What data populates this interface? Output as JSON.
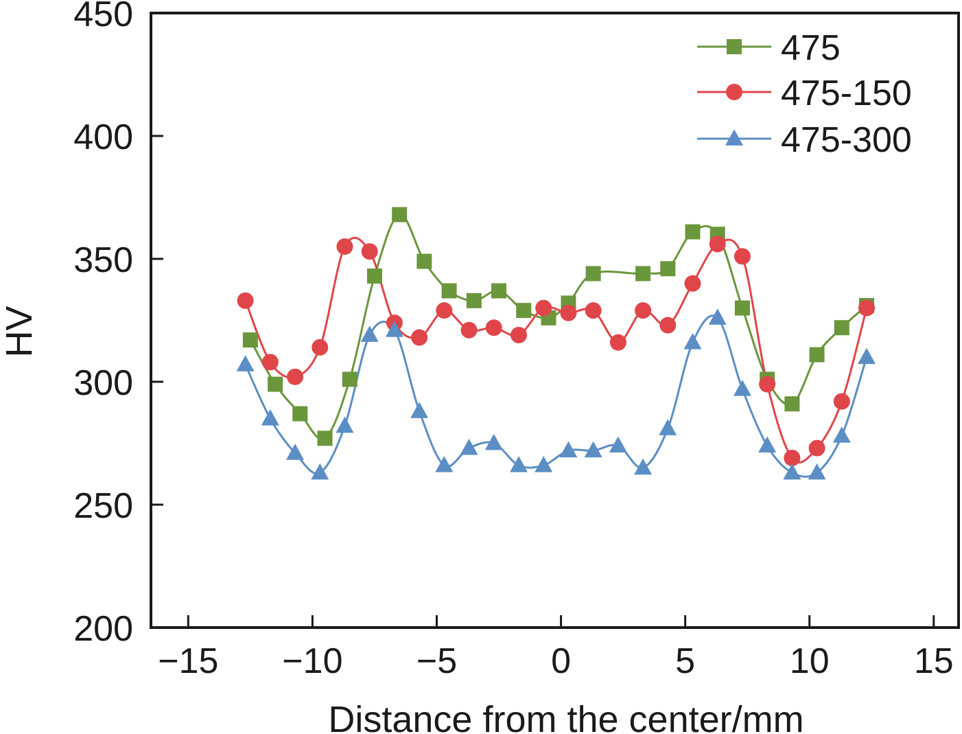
{
  "chart_data": {
    "type": "line",
    "title": "",
    "xlabel": "Distance from the center/mm",
    "ylabel": "HV",
    "xlim": [
      -16.5,
      16
    ],
    "ylim": [
      200,
      450
    ],
    "xticks": [
      -15,
      -10,
      -5,
      0,
      5,
      10,
      15
    ],
    "xtick_labels": [
      "−15",
      "−10",
      "−5",
      "0",
      "5",
      "10",
      "15"
    ],
    "yticks": [
      200,
      250,
      300,
      350,
      400,
      450
    ],
    "ytick_labels": [
      "200",
      "250",
      "300",
      "350",
      "400",
      "450"
    ],
    "grid": false,
    "legend_position": "top-right",
    "series": [
      {
        "name": "475",
        "color": "#6a963c",
        "marker": "square",
        "x": [
          -12.5,
          -11.5,
          -10.5,
          -9.5,
          -8.5,
          -7.5,
          -6.5,
          -5.5,
          -4.5,
          -3.5,
          -2.5,
          -1.5,
          -0.5,
          0.3,
          1.3,
          3.3,
          4.3,
          5.3,
          6.3,
          7.3,
          8.3,
          9.3,
          10.3,
          11.3,
          12.3
        ],
        "y": [
          317,
          299,
          287,
          277,
          301,
          343,
          368,
          349,
          337,
          333,
          337,
          329,
          326,
          332,
          344,
          344,
          346,
          361,
          360,
          330,
          301,
          291,
          311,
          322,
          331
        ]
      },
      {
        "name": "475-150",
        "color": "#e0454a",
        "marker": "circle",
        "x": [
          -12.7,
          -11.7,
          -10.7,
          -9.7,
          -8.7,
          -7.7,
          -6.7,
          -5.7,
          -4.7,
          -3.7,
          -2.7,
          -1.7,
          -0.7,
          0.3,
          1.3,
          2.3,
          3.3,
          4.3,
          5.3,
          6.3,
          7.3,
          8.3,
          9.3,
          10.3,
          11.3,
          12.3
        ],
        "y": [
          333,
          308,
          302,
          314,
          355,
          353,
          324,
          318,
          329,
          321,
          322,
          319,
          330,
          328,
          329,
          316,
          329,
          323,
          340,
          356,
          351,
          299,
          269,
          273,
          292,
          330
        ]
      },
      {
        "name": "475-300",
        "color": "#5b8ec4",
        "marker": "triangle",
        "x": [
          -12.7,
          -11.7,
          -10.7,
          -9.7,
          -8.7,
          -7.7,
          -6.7,
          -5.7,
          -4.7,
          -3.7,
          -2.7,
          -1.7,
          -0.7,
          0.3,
          1.3,
          2.3,
          3.3,
          4.3,
          5.3,
          6.3,
          7.3,
          8.3,
          9.3,
          10.3,
          11.3,
          12.3
        ],
        "y": [
          307,
          285,
          271,
          263,
          282,
          319,
          321,
          288,
          266,
          273,
          275,
          266,
          266,
          272,
          272,
          274,
          265,
          281,
          316,
          326,
          297,
          274,
          263,
          263,
          278,
          310
        ]
      }
    ]
  }
}
